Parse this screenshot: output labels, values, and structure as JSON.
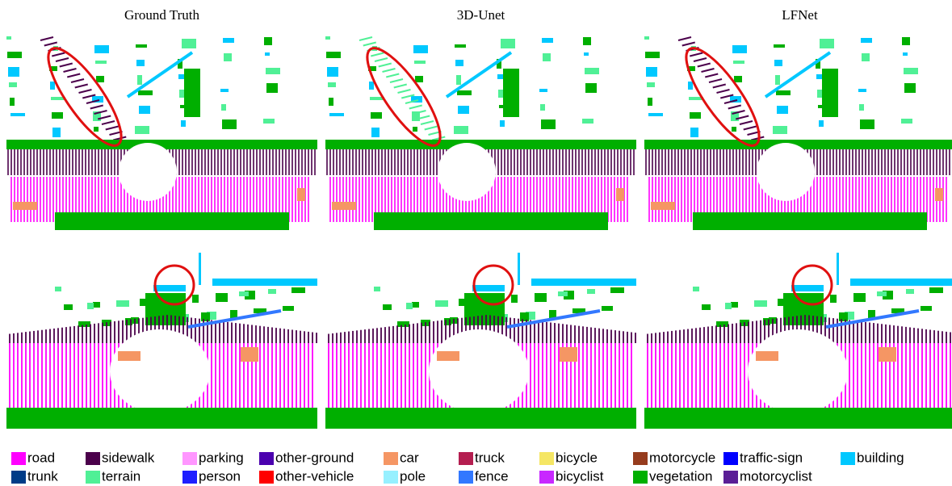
{
  "columns": [
    "Ground Truth",
    "3D-Unet",
    "LFNet"
  ],
  "legend": {
    "items": [
      {
        "name": "road",
        "color": "#ff00ff"
      },
      {
        "name": "sidewalk",
        "color": "#4b004b"
      },
      {
        "name": "parking",
        "color": "#ff96ff"
      },
      {
        "name": "other-ground",
        "color": "#4b00af"
      },
      {
        "name": "car",
        "color": "#f59664"
      },
      {
        "name": "truck",
        "color": "#b41e50"
      },
      {
        "name": "bicycle",
        "color": "#f5e664"
      },
      {
        "name": "motorcycle",
        "color": "#963c1e"
      },
      {
        "name": "traffic-sign",
        "color": "#0000ff"
      },
      {
        "name": "building",
        "color": "#00c8ff"
      },
      {
        "name": "trunk",
        "color": "#003c87"
      },
      {
        "name": "terrain",
        "color": "#50f096"
      },
      {
        "name": "person",
        "color": "#1e1eff"
      },
      {
        "name": "other-vehicle",
        "color": "#ff0000"
      },
      {
        "name": "pole",
        "color": "#96f0ff"
      },
      {
        "name": "fence",
        "color": "#3278ff"
      },
      {
        "name": "bicyclist",
        "color": "#c828ff"
      },
      {
        "name": "vegetation",
        "color": "#00af00"
      },
      {
        "name": "motorcyclist",
        "color": "#5a1e96"
      }
    ]
  }
}
